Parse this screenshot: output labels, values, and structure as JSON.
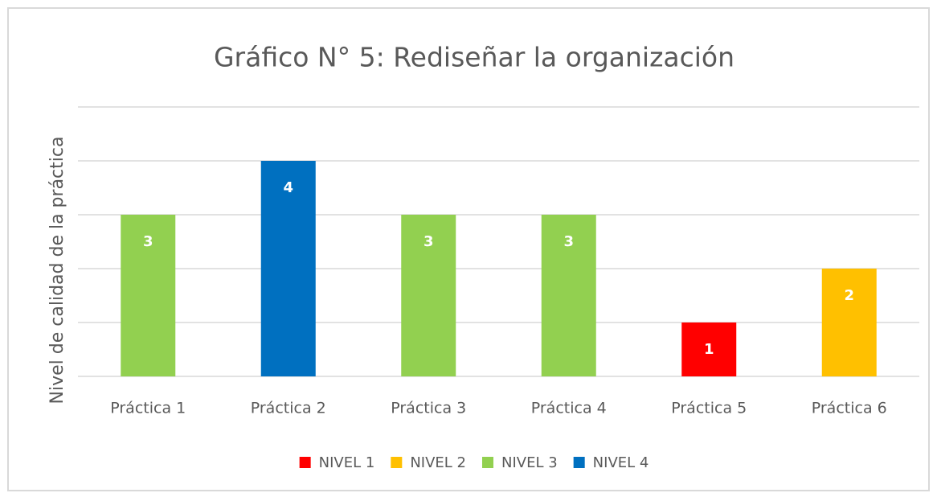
{
  "chart_data": {
    "type": "bar",
    "title": "Gráfico N° 5: Rediseñar la organización",
    "y_label": "Nivel de calidad de la práctica",
    "categories": [
      "Práctica 1",
      "Práctica 2",
      "Práctica 3",
      "Práctica 4",
      "Práctica 5",
      "Práctica 6"
    ],
    "series": [
      {
        "name": "NIVEL 1",
        "color": "#ff0000",
        "values": [
          null,
          null,
          null,
          null,
          1,
          null
        ]
      },
      {
        "name": "NIVEL 2",
        "color": "#ffc000",
        "values": [
          null,
          null,
          null,
          null,
          null,
          2
        ]
      },
      {
        "name": "NIVEL 3",
        "color": "#92d050",
        "values": [
          3,
          null,
          3,
          3,
          null,
          null
        ]
      },
      {
        "name": "NIVEL 4",
        "color": "#0070c0",
        "values": [
          null,
          4,
          null,
          null,
          null,
          null
        ]
      }
    ],
    "ylim": [
      0,
      5
    ],
    "yticks": [
      0,
      1,
      2,
      3,
      4,
      5
    ],
    "grid": true,
    "legend": "bottom"
  }
}
